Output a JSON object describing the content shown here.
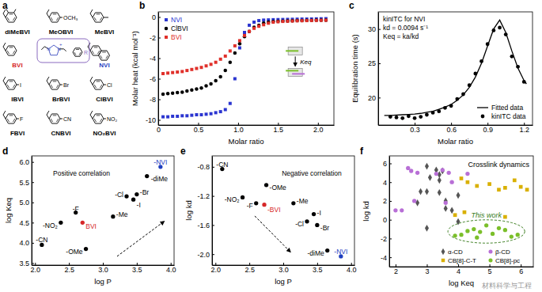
{
  "chart_data": [
    {
      "type": "structures",
      "title": "a",
      "structures": [
        {
          "label": "diMeBVI",
          "marker": "dimethyl",
          "color": "#000000"
        },
        {
          "label": "MeOBVI",
          "marker": "para",
          "substituent": "OCH₃",
          "color": "#000000"
        },
        {
          "label": "MeBVI",
          "marker": "methyl",
          "color": "#000000"
        },
        {
          "label": "BVI",
          "marker": "benzyl",
          "color": "#d62728"
        },
        {
          "label": "NVI",
          "marker": "naphthyl",
          "color": "#1f3fbf"
        },
        {
          "label": "IBVI",
          "marker": "para",
          "substituent": "I",
          "color": "#000000"
        },
        {
          "label": "BrBVI",
          "marker": "para",
          "substituent": "Br",
          "color": "#000000"
        },
        {
          "label": "ClBVI",
          "marker": "para",
          "substituent": "Cl",
          "color": "#000000"
        },
        {
          "label": "FBVI",
          "marker": "para",
          "substituent": "F",
          "color": "#000000"
        },
        {
          "label": "CNBVI",
          "marker": "para",
          "substituent": "CN",
          "color": "#000000"
        },
        {
          "label": "NO₂BVI",
          "marker": "para",
          "substituent": "NO₂",
          "color": "#000000"
        }
      ],
      "core": {
        "labels": [
          "N",
          "N",
          "+",
          "R"
        ]
      }
    },
    {
      "type": "scatter",
      "title": "b",
      "x_label": "Molar ratio",
      "y_label": "Molar heat (kcal mol⁻¹)",
      "x": [
        0.06,
        0.12,
        0.18,
        0.24,
        0.3,
        0.36,
        0.42,
        0.48,
        0.54,
        0.6,
        0.66,
        0.72,
        0.78,
        0.84,
        0.9,
        0.96,
        1.02,
        1.08,
        1.14,
        1.2,
        1.26,
        1.32,
        1.38,
        1.44,
        1.5,
        1.56,
        1.62,
        1.68,
        1.74,
        1.8,
        1.86,
        1.92,
        1.98,
        2.04,
        2.1
      ],
      "xlim": [
        0,
        2.2
      ],
      "xticks": [
        0,
        0.5,
        {
          "value": 1,
          "label": "1.0"
        },
        1.5,
        {
          "value": 2,
          "label": "2.0"
        }
      ],
      "ylim": [
        -10.5,
        0.5
      ],
      "yticks": [
        -10,
        -8,
        -6,
        -4,
        -2,
        0
      ],
      "legend": "top-left",
      "annotations": [
        "Keq"
      ],
      "series": [
        {
          "name": "NVI",
          "marker": "square",
          "color": "#2b35d0",
          "values": [
            -9.7,
            -9.7,
            -9.65,
            -9.65,
            -9.6,
            -9.6,
            -9.55,
            -9.5,
            -9.5,
            -9.45,
            -9.4,
            -9.3,
            -9.2,
            -9.0,
            -8.4,
            -6.0,
            -3.0,
            -1.5,
            -0.8,
            -0.5,
            -0.35,
            -0.3,
            -0.28,
            -0.26,
            -0.25,
            -0.24,
            -0.23,
            -0.22,
            -0.21,
            -0.2,
            -0.2,
            -0.19,
            -0.18,
            -0.17,
            -0.16
          ]
        },
        {
          "name": "ClBVI",
          "marker": "circle",
          "color": "#000000",
          "values": [
            -7.5,
            -7.45,
            -7.4,
            -7.35,
            -7.3,
            -7.2,
            -7.1,
            -7.0,
            -6.9,
            -6.7,
            -6.5,
            -6.2,
            -5.8,
            -5.2,
            -4.4,
            -3.5,
            -2.6,
            -1.9,
            -1.4,
            -1.0,
            -0.8,
            -0.6,
            -0.5,
            -0.45,
            -0.42,
            -0.4,
            -0.38,
            -0.36,
            -0.35,
            -0.34,
            -0.33,
            -0.32,
            -0.31,
            -0.3,
            -0.3
          ]
        },
        {
          "name": "BVI",
          "marker": "square",
          "color": "#e0302a",
          "values": [
            -5.5,
            -5.45,
            -5.4,
            -5.35,
            -5.3,
            -5.2,
            -5.1,
            -5.0,
            -4.9,
            -4.75,
            -4.6,
            -4.4,
            -4.1,
            -3.8,
            -3.3,
            -2.8,
            -2.3,
            -1.8,
            -1.4,
            -1.1,
            -0.9,
            -0.75,
            -0.6,
            -0.5,
            -0.46,
            -0.43,
            -0.41,
            -0.39,
            -0.37,
            -0.36,
            -0.35,
            -0.34,
            -0.33,
            -0.32,
            -0.31
          ]
        }
      ]
    },
    {
      "type": "line",
      "title": "c",
      "x_label": "Molar ratio",
      "y_label": "Equilibration time (s)",
      "xlim": [
        0,
        1.27
      ],
      "xticks": [
        0.3,
        0.6,
        0.9,
        1.2
      ],
      "ylim": [
        16,
        32.5
      ],
      "yticks": [
        20,
        25,
        30
      ],
      "legend": "bottom-right",
      "annotations": [
        "kinITC for NVI",
        "kd = 0.0094 s⁻¹",
        "Keq = ka/kd"
      ],
      "series": [
        {
          "name": "Fitted data",
          "type": "line",
          "color": "#000000",
          "x": [
            0.05,
            0.1,
            0.15,
            0.2,
            0.25,
            0.3,
            0.35,
            0.4,
            0.45,
            0.5,
            0.55,
            0.6,
            0.65,
            0.7,
            0.75,
            0.8,
            0.85,
            0.9,
            0.95,
            1.0,
            1.05,
            1.1,
            1.15,
            1.2,
            1.22
          ],
          "values": [
            17.4,
            17.4,
            17.45,
            17.5,
            17.55,
            17.6,
            17.7,
            17.85,
            18.0,
            18.3,
            18.6,
            19.0,
            19.6,
            20.4,
            21.5,
            23.0,
            25.0,
            27.5,
            30.0,
            31.3,
            29.5,
            26.8,
            24.3,
            22.5,
            22.0
          ]
        },
        {
          "name": "kinITC data",
          "type": "scatter",
          "marker": "circle",
          "color": "#000000",
          "x": [
            0.1,
            0.15,
            0.2,
            0.25,
            0.3,
            0.35,
            0.4,
            0.45,
            0.5,
            0.55,
            0.6,
            0.65,
            0.7,
            0.75,
            0.8,
            0.85,
            0.9,
            0.95,
            1.0,
            1.05,
            1.1,
            1.15,
            1.2
          ],
          "values": [
            17.2,
            17.1,
            17.0,
            17.3,
            17.0,
            17.2,
            17.5,
            17.8,
            18.0,
            18.5,
            18.8,
            19.8,
            20.5,
            21.8,
            23.5,
            25.3,
            27.8,
            29.8,
            30.2,
            29.2,
            26.0,
            24.5,
            22.3
          ]
        }
      ]
    },
    {
      "type": "scatter",
      "title": "d",
      "x_label": "log P",
      "y_label": "log Keq",
      "xlim": [
        1.95,
        4.05
      ],
      "xticks": [
        {
          "value": 2,
          "label": "2.0"
        },
        2.5,
        {
          "value": 3,
          "label": "3.0"
        },
        3.5,
        {
          "value": 4,
          "label": "4.0"
        }
      ],
      "ylim": [
        3.45,
        6.15
      ],
      "yticks": [
        3.5,
        {
          "value": 4,
          "label": "4.0"
        },
        4.5,
        {
          "value": 5,
          "label": "5.0"
        },
        5.5,
        {
          "value": 6,
          "label": "6.0"
        }
      ],
      "annotations": [
        "Positive correlation"
      ],
      "series": [
        {
          "marker": "circle",
          "x": [
            2.1,
            2.38,
            2.6,
            2.7,
            2.75,
            3.15,
            3.35,
            3.45,
            3.5,
            3.65,
            3.85
          ],
          "values": [
            3.95,
            4.5,
            4.75,
            4.5,
            3.85,
            4.65,
            5.15,
            5.07,
            5.2,
            5.65,
            5.88
          ],
          "labels": [
            "-CN",
            "-NO₂",
            "-F",
            "BVI",
            "-OMe",
            "-Me",
            "-Cl",
            "-I",
            "-Br",
            "-diMe",
            "-NVI"
          ],
          "colors": [
            "#000000",
            "#000000",
            "#000000",
            "#d62728",
            "#000000",
            "#000000",
            "#000000",
            "#000000",
            "#000000",
            "#000000",
            "#1f3fbf"
          ]
        }
      ]
    },
    {
      "type": "scatter",
      "title": "e",
      "x_label": "log P",
      "y_label": "log kd",
      "xlim": [
        1.95,
        4.05
      ],
      "xticks": [
        {
          "value": 2,
          "label": "2.0"
        },
        2.5,
        {
          "value": 3,
          "label": "3.0"
        },
        3.5,
        {
          "value": 4,
          "label": "4.0"
        }
      ],
      "ylim": [
        -2.15,
        -0.65
      ],
      "yticks": [
        -0.8,
        -1.2,
        -1.6,
        {
          "value": -2,
          "label": "-2.0"
        }
      ],
      "annotations": [
        "Negative correlation"
      ],
      "series": [
        {
          "marker": "circle",
          "x": [
            2.1,
            2.4,
            2.6,
            2.72,
            2.75,
            3.15,
            3.35,
            3.45,
            3.5,
            3.65,
            3.85
          ],
          "values": [
            -0.83,
            -1.22,
            -1.3,
            -1.32,
            -1.05,
            -1.3,
            -1.55,
            -1.45,
            -1.6,
            -1.95,
            -2.03
          ],
          "labels": [
            "-CN",
            "-NO₂",
            "-F",
            "-BVI",
            "-OMe",
            "-Me",
            "-Cl",
            "-I",
            "-Br",
            "-diMe",
            "-NVI"
          ],
          "colors": [
            "#000000",
            "#000000",
            "#000000",
            "#d62728",
            "#000000",
            "#000000",
            "#000000",
            "#000000",
            "#000000",
            "#000000",
            "#1f3fbf"
          ]
        }
      ]
    },
    {
      "type": "scatter",
      "title": "f",
      "x_label": "log Keq",
      "y_label": "log kd",
      "xlim": [
        1.8,
        6.4
      ],
      "xticks": [
        2,
        3,
        4,
        5,
        6
      ],
      "ylim": [
        -5,
        6.8
      ],
      "yticks": [
        -4,
        -2,
        0,
        2,
        4,
        6
      ],
      "legend": "bottom-right",
      "annotations": [
        "Crosslink dynamics",
        "This work",
        "材料科学与工程"
      ],
      "series": [
        {
          "name": "α-CD",
          "marker": "diamond",
          "color": "#555555",
          "x": [
            3.0,
            3.3,
            3.4,
            3.1,
            2.8,
            3.0,
            3.4,
            3.4,
            3.6,
            3.6,
            3.8,
            4.0,
            2.7,
            3.0,
            4.0,
            3.5
          ],
          "values": [
            5.7,
            5.3,
            4.8,
            4.5,
            3.0,
            3.0,
            2.9,
            4.2,
            2.0,
            1.2,
            1.0,
            2.6,
            1.8,
            -0.9,
            -0.2,
            5.2
          ]
        },
        {
          "name": "β-CD",
          "marker": "circle",
          "color": "#b86fd6",
          "x": [
            2.4,
            2.5,
            2.7,
            3.5,
            3.3,
            3.7,
            2.0,
            2.2,
            2.6,
            3.8,
            3.6,
            4.3
          ],
          "values": [
            5.5,
            5.2,
            5.0,
            5.3,
            4.9,
            5.0,
            1.0,
            1.0,
            2.0,
            4.0,
            1.8,
            4.9
          ]
        },
        {
          "name": "CB[8]-C-T",
          "marker": "square",
          "color": "#d9b000",
          "x": [
            4.1,
            4.3,
            4.6,
            5.0,
            5.3,
            5.5,
            5.8,
            6.0,
            6.2,
            4.2,
            3.9,
            5.5
          ],
          "values": [
            4.4,
            4.0,
            3.6,
            3.8,
            3.2,
            3.4,
            4.2,
            3.5,
            3.2,
            0.8,
            0.5,
            0.3
          ]
        },
        {
          "name": "CB[8]-pc",
          "marker": "circle",
          "color": "#7bbf2a",
          "x": [
            3.9,
            4.1,
            4.3,
            4.5,
            4.7,
            4.9,
            5.1,
            5.3,
            5.5,
            5.7,
            5.9,
            4.6
          ],
          "values": [
            -1.7,
            -1.6,
            -1.2,
            -1.0,
            -1.3,
            -0.6,
            -1.5,
            -0.9,
            -1.1,
            -1.8,
            -1.6,
            -1.9
          ]
        }
      ]
    }
  ]
}
